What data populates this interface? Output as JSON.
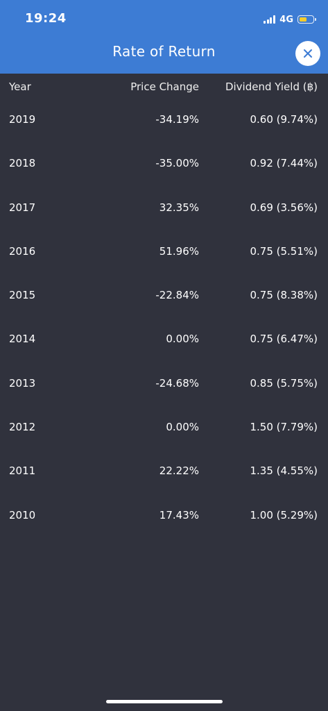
{
  "status_bar": {
    "time": "19:24",
    "network": "4G",
    "battery_level": 0.6,
    "battery_color": "#f5cc2b"
  },
  "header": {
    "title": "Rate of Return",
    "background": "#3d7cd4",
    "close_icon": "close-x-icon"
  },
  "table": {
    "columns": {
      "year": "Year",
      "price_change": "Price Change",
      "dividend_yield": "Dividend Yield (฿)"
    },
    "rows": [
      {
        "year": "2019",
        "price_change": "-34.19%",
        "dividend_yield": "0.60 (9.74%)"
      },
      {
        "year": "2018",
        "price_change": "-35.00%",
        "dividend_yield": "0.92 (7.44%)"
      },
      {
        "year": "2017",
        "price_change": "32.35%",
        "dividend_yield": "0.69 (3.56%)"
      },
      {
        "year": "2016",
        "price_change": "51.96%",
        "dividend_yield": "0.75 (5.51%)"
      },
      {
        "year": "2015",
        "price_change": "-22.84%",
        "dividend_yield": "0.75 (8.38%)"
      },
      {
        "year": "2014",
        "price_change": "0.00%",
        "dividend_yield": "0.75 (6.47%)"
      },
      {
        "year": "2013",
        "price_change": "-24.68%",
        "dividend_yield": "0.85 (5.75%)"
      },
      {
        "year": "2012",
        "price_change": "0.00%",
        "dividend_yield": "1.50 (7.79%)"
      },
      {
        "year": "2011",
        "price_change": "22.22%",
        "dividend_yield": "1.35 (4.55%)"
      },
      {
        "year": "2010",
        "price_change": "17.43%",
        "dividend_yield": "1.00 (5.29%)"
      }
    ]
  }
}
